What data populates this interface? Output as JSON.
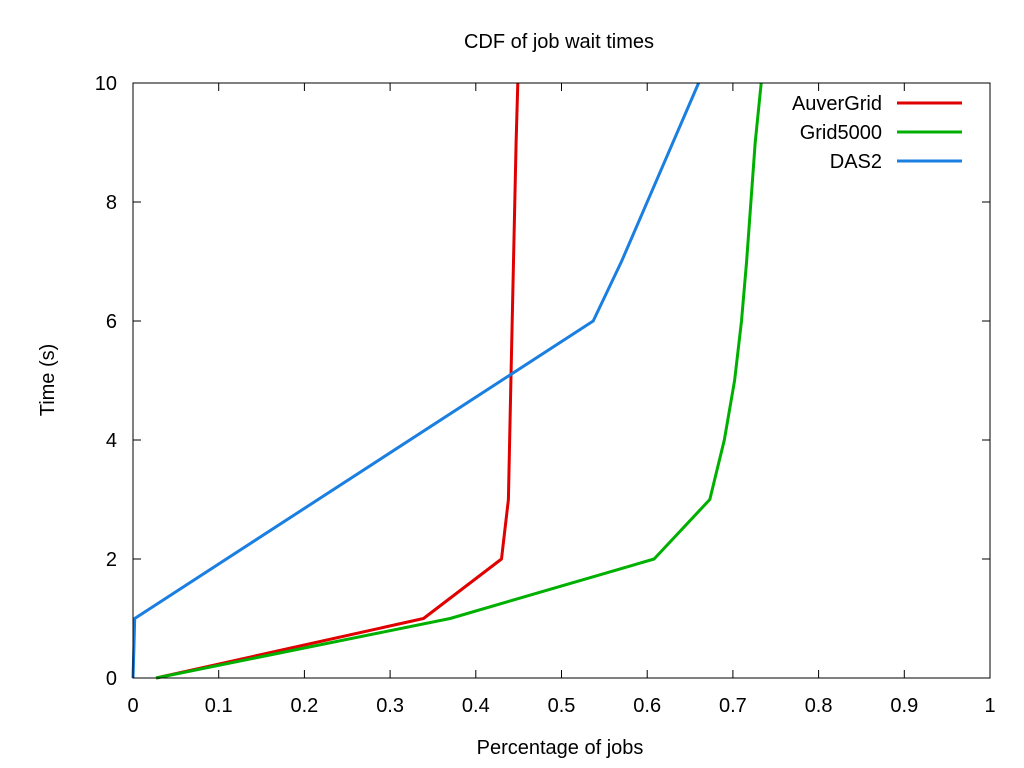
{
  "chart_data": {
    "type": "line",
    "title": "CDF of job wait times",
    "xlabel": "Percentage of jobs",
    "ylabel": "Time (s)",
    "xlim": [
      0,
      1
    ],
    "ylim": [
      0,
      10
    ],
    "xticks": [
      "0",
      "0.1",
      "0.2",
      "0.3",
      "0.4",
      "0.5",
      "0.6",
      "0.7",
      "0.8",
      "0.9",
      "1"
    ],
    "yticks": [
      "0",
      "2",
      "4",
      "6",
      "8",
      "10"
    ],
    "grid": false,
    "legend": "top-right",
    "series": [
      {
        "name": "AuverGrid",
        "color": "#e00000",
        "points": [
          [
            0.027,
            0
          ],
          [
            0.339,
            1
          ],
          [
            0.43,
            2
          ],
          [
            0.438,
            3
          ],
          [
            0.441,
            5
          ],
          [
            0.444,
            7
          ],
          [
            0.447,
            9
          ],
          [
            0.449,
            10
          ]
        ]
      },
      {
        "name": "Grid5000",
        "color": "#00b000",
        "points": [
          [
            0.027,
            0
          ],
          [
            0.37,
            1
          ],
          [
            0.608,
            2
          ],
          [
            0.673,
            3
          ],
          [
            0.69,
            4
          ],
          [
            0.702,
            5
          ],
          [
            0.71,
            6
          ],
          [
            0.716,
            7
          ],
          [
            0.721,
            8
          ],
          [
            0.726,
            9
          ],
          [
            0.733,
            10
          ]
        ]
      },
      {
        "name": "DAS2",
        "color": "#1a7fe0",
        "points": [
          [
            0.0,
            0
          ],
          [
            0.001,
            0.5
          ],
          [
            0.002,
            1
          ],
          [
            0.537,
            6
          ],
          [
            0.57,
            7
          ],
          [
            0.66,
            10
          ]
        ]
      }
    ]
  }
}
